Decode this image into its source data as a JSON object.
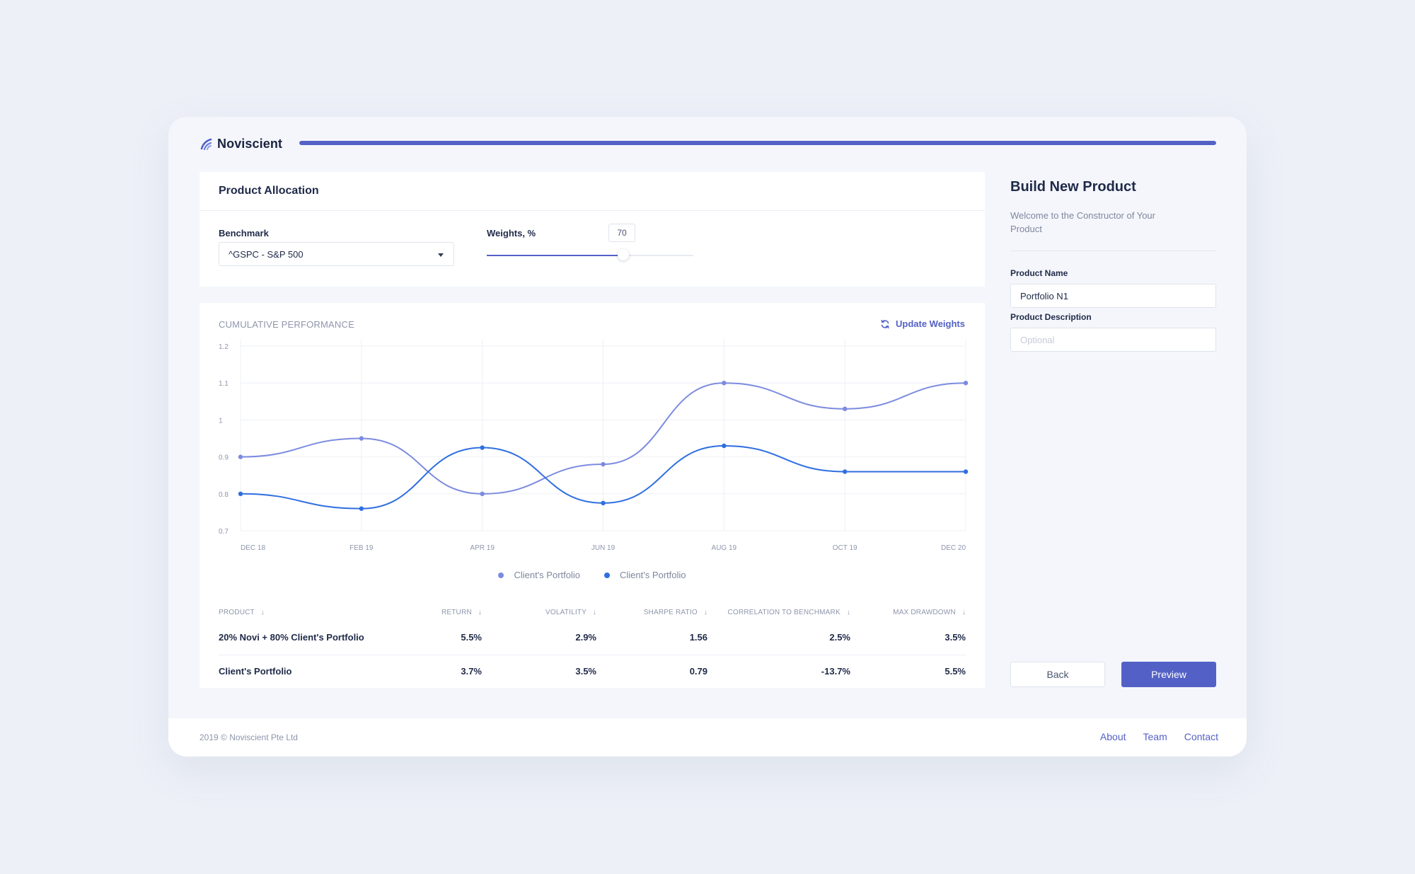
{
  "app": {
    "name": "Noviscient"
  },
  "header": {
    "progress_percent": 100
  },
  "allocation": {
    "title": "Product Allocation",
    "benchmark_label": "Benchmark",
    "benchmark_value": "^GSPC - S&P 500",
    "weights_label": "Weights, %",
    "weights_value": "70",
    "weights_fraction": 0.66
  },
  "performance": {
    "title": "CUMULATIVE PERFORMANCE",
    "update_label": "Update Weights"
  },
  "chart_data": {
    "type": "line",
    "title": "CUMULATIVE PERFORMANCE",
    "x": [
      "DEC 18",
      "FEB 19",
      "APR 19",
      "JUN 19",
      "AUG 19",
      "OCT 19",
      "DEC 20"
    ],
    "y_ticks": [
      "1.2",
      "1.1",
      "1",
      "0.9",
      "0.8",
      "0.7"
    ],
    "ylim": [
      0.7,
      1.2
    ],
    "grid": true,
    "legend_position": "bottom-center",
    "series": [
      {
        "name": "Client's Portfolio",
        "color": "#7c8be0",
        "values": [
          0.9,
          0.95,
          0.8,
          0.88,
          1.1,
          1.03,
          1.1
        ]
      },
      {
        "name": "Client's Portfolio",
        "color": "#2f6fe0",
        "values": [
          0.8,
          0.76,
          0.925,
          0.775,
          0.93,
          0.86,
          0.86
        ]
      }
    ]
  },
  "table": {
    "columns": [
      "PRODUCT",
      "RETURN",
      "VOLATILITY",
      "SHARPE RATIO",
      "CORRELATION TO BENCHMARK",
      "MAX DRAWDOWN"
    ],
    "sort_arrow": "↓",
    "rows": [
      [
        "20% Novi + 80% Client's Portfolio",
        "5.5%",
        "2.9%",
        "1.56",
        "2.5%",
        "3.5%"
      ],
      [
        "Client's Portfolio",
        "3.7%",
        "3.5%",
        "0.79",
        "-13.7%",
        "5.5%"
      ]
    ]
  },
  "panel": {
    "title": "Build New Product",
    "subtitle": "Welcome to the Constructor of Your Product",
    "name_label": "Product Name",
    "name_value": "Portfolio N1",
    "description_label": "Product Description",
    "description_placeholder": "Optional",
    "back_label": "Back",
    "preview_label": "Preview"
  },
  "footer": {
    "copyright": "2019 © Noviscient Pte Ltd",
    "links": [
      "About",
      "Team",
      "Contact"
    ]
  },
  "colors": {
    "accent": "#5361c6",
    "series_a": "#7c8be0",
    "series_b": "#2f6fe0"
  }
}
